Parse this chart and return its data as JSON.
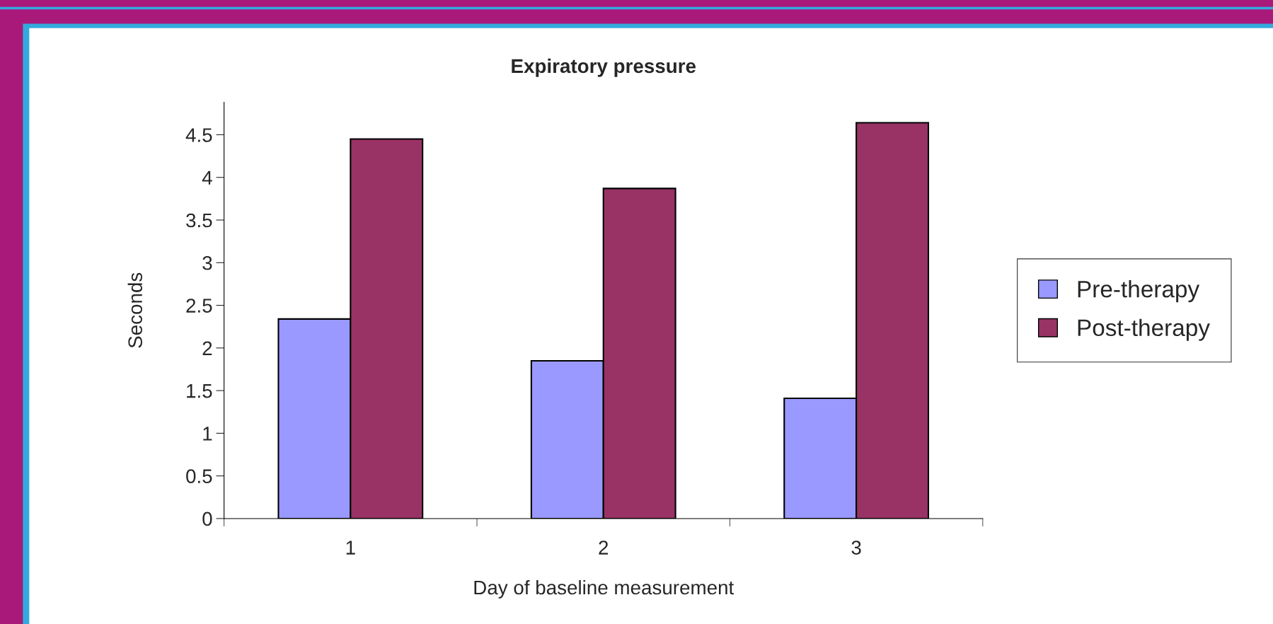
{
  "chart_data": {
    "type": "bar",
    "title": "Expiratory pressure",
    "xlabel": "Day of baseline measurement",
    "ylabel": "Seconds",
    "categories": [
      "1",
      "2",
      "3"
    ],
    "series": [
      {
        "name": "Pre-therapy",
        "color": "#9999ff",
        "values": [
          2.34,
          1.85,
          1.41
        ]
      },
      {
        "name": "Post-therapy",
        "color": "#993366",
        "values": [
          4.45,
          3.87,
          4.64
        ]
      }
    ],
    "ylim": [
      0,
      4.88
    ],
    "yticks": [
      0,
      0.5,
      1,
      1.5,
      2,
      2.5,
      3,
      3.5,
      4,
      4.5
    ],
    "grid": false,
    "legend": "right"
  }
}
